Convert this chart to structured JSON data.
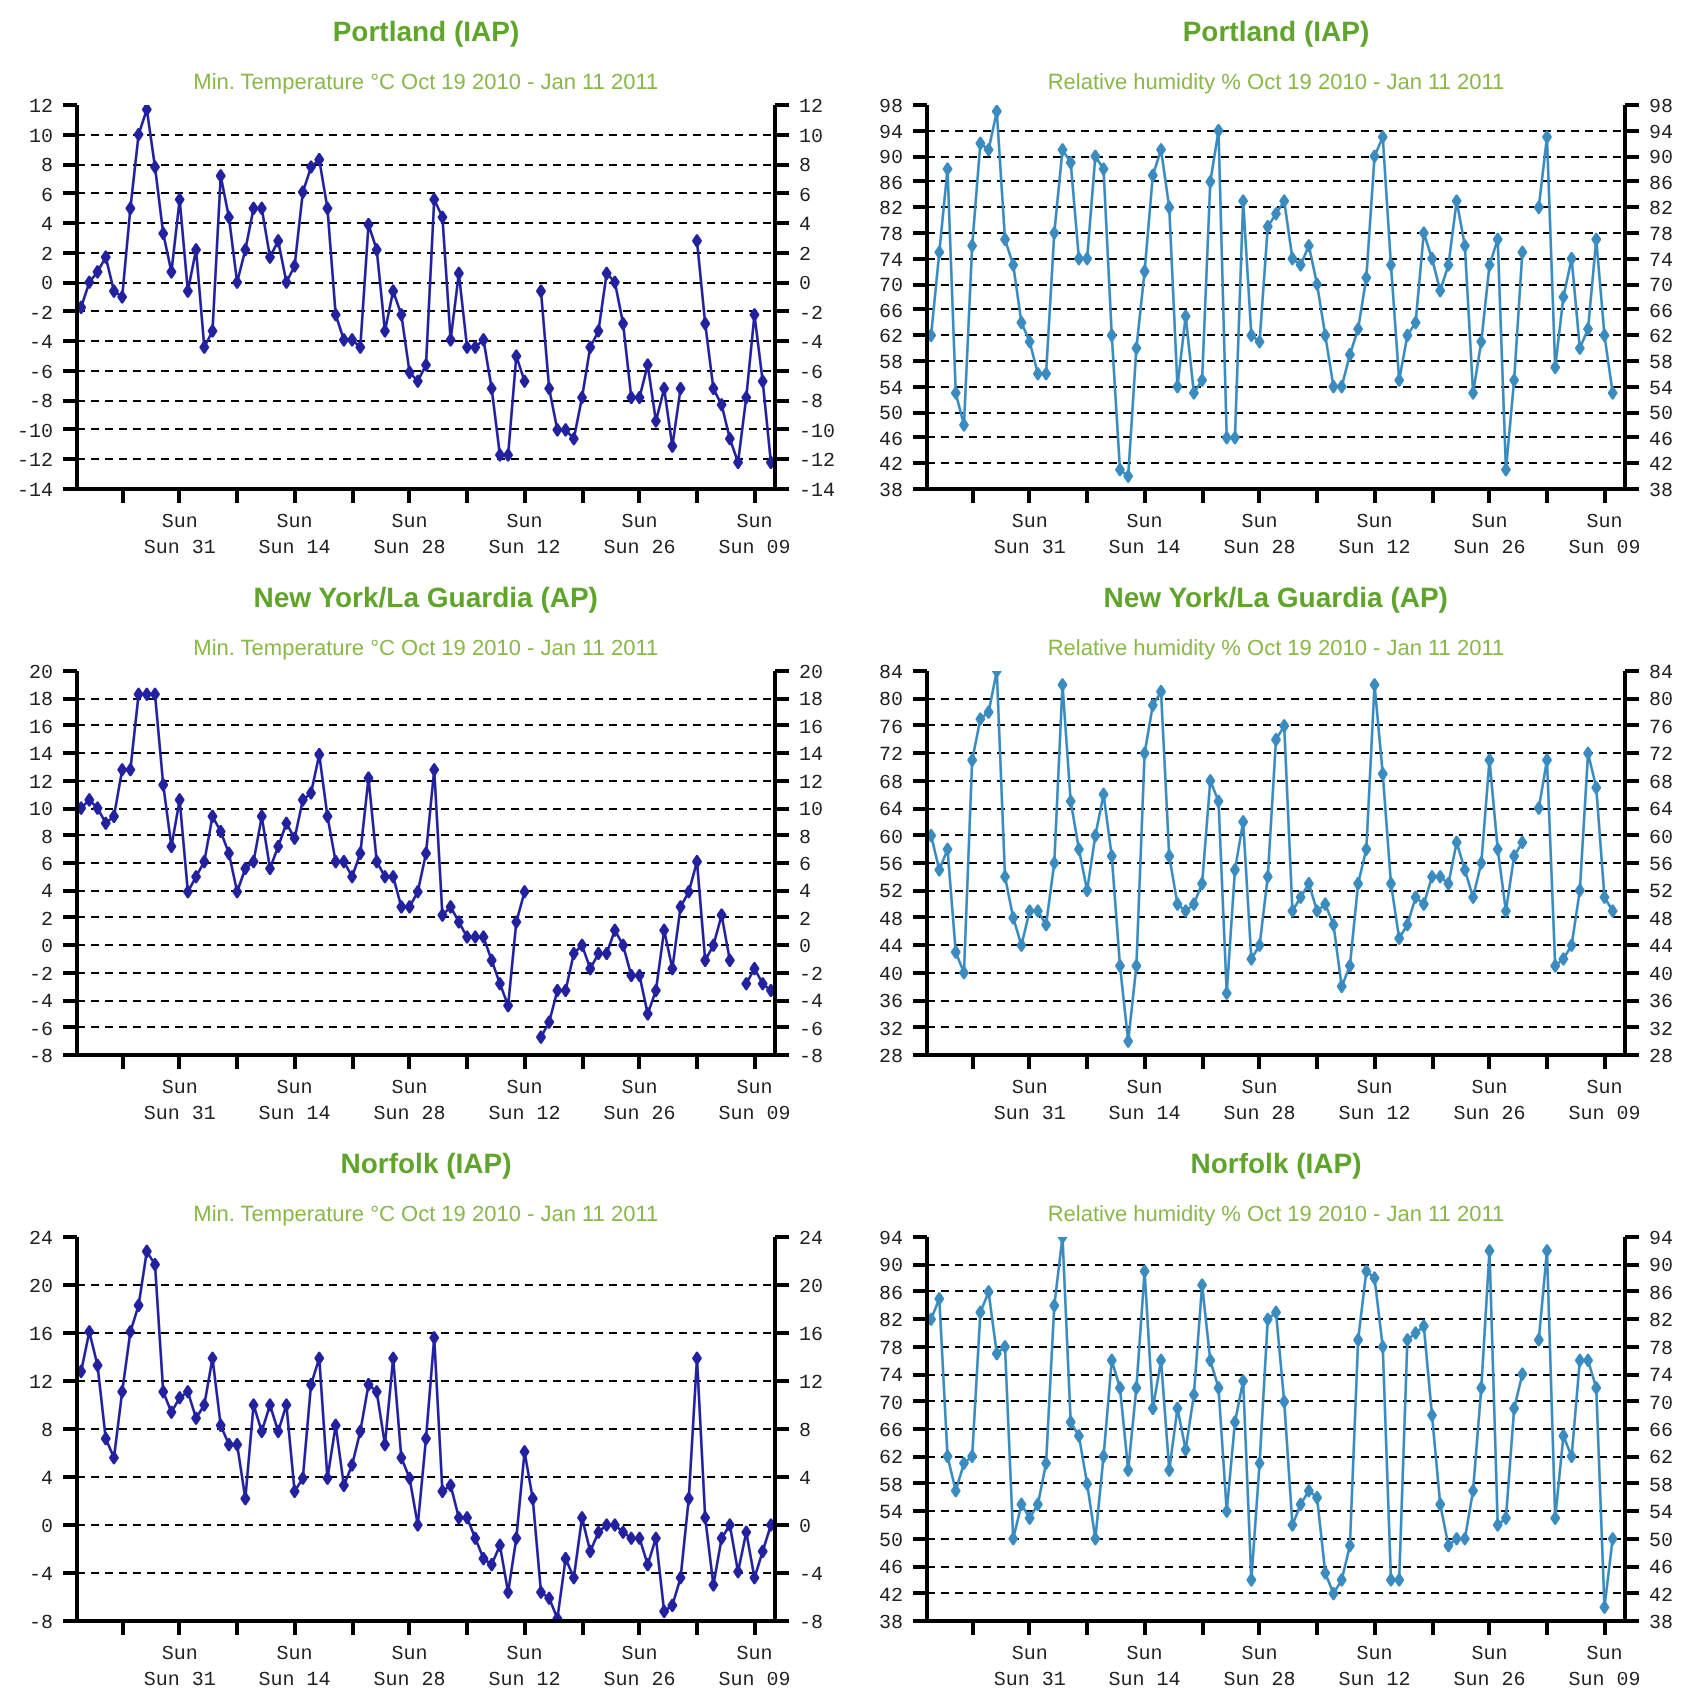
{
  "chart_data": [
    {
      "type": "line",
      "title": "Portland (IAP)",
      "subtitle": "Min. Temperature °C Oct 19 2010 - Jan 11 2011",
      "marker": "diamond",
      "line_style": "solid",
      "grid": "y",
      "x": [
        "2010-10-19",
        "2010-10-20",
        "2010-10-21",
        "2010-10-22",
        "2010-10-23",
        "2010-10-24",
        "2010-10-25",
        "2010-10-26",
        "2010-10-27",
        "2010-10-28",
        "2010-10-29",
        "2010-10-30",
        "2010-10-31",
        "2010-11-01",
        "2010-11-02",
        "2010-11-03",
        "2010-11-04",
        "2010-11-05",
        "2010-11-06",
        "2010-11-07",
        "2010-11-08",
        "2010-11-09",
        "2010-11-10",
        "2010-11-11",
        "2010-11-12",
        "2010-11-13",
        "2010-11-14",
        "2010-11-15",
        "2010-11-16",
        "2010-11-17",
        "2010-11-18",
        "2010-11-19",
        "2010-11-20",
        "2010-11-21",
        "2010-11-22",
        "2010-11-23",
        "2010-11-24",
        "2010-11-25",
        "2010-11-26",
        "2010-11-27",
        "2010-11-28",
        "2010-11-29",
        "2010-11-30",
        "2010-12-01",
        "2010-12-02",
        "2010-12-03",
        "2010-12-04",
        "2010-12-05",
        "2010-12-06",
        "2010-12-07",
        "2010-12-08",
        "2010-12-09",
        "2010-12-10",
        "2010-12-11",
        "2010-12-12",
        "2010-12-13",
        "2010-12-14",
        "2010-12-15",
        "2010-12-16",
        "2010-12-17",
        "2010-12-18",
        "2010-12-19",
        "2010-12-20",
        "2010-12-21",
        "2010-12-22",
        "2010-12-23",
        "2010-12-24",
        "2010-12-25",
        "2010-12-26",
        "2010-12-27",
        "2010-12-28",
        "2010-12-29",
        "2010-12-30",
        "2010-12-31",
        "2011-01-01",
        "2011-01-02",
        "2011-01-03",
        "2011-01-04",
        "2011-01-05",
        "2011-01-06",
        "2011-01-07",
        "2011-01-08",
        "2011-01-09",
        "2011-01-10",
        "2011-01-11"
      ],
      "series": [
        {
          "color": "#2222a0",
          "values": [
            -1.7,
            0,
            0.7,
            1.7,
            -0.6,
            -1.0,
            5.0,
            10.0,
            11.7,
            7.8,
            3.3,
            0.7,
            5.6,
            -0.6,
            2.2,
            -4.4,
            -3.3,
            7.2,
            4.4,
            0,
            2.2,
            5.0,
            5.0,
            1.7,
            2.8,
            0,
            1.1,
            6.1,
            7.8,
            8.3,
            5.0,
            -2.2,
            -3.9,
            -3.9,
            -4.4,
            3.9,
            2.2,
            -3.3,
            -0.6,
            -2.2,
            -6.1,
            -6.7,
            -5.6,
            5.6,
            4.4,
            -3.9,
            0.6,
            -4.4,
            -4.4,
            -3.9,
            -7.2,
            -11.7,
            -11.7,
            -5.0,
            -6.7,
            null,
            -0.6,
            -7.2,
            -10.0,
            -10.0,
            -10.6,
            -7.8,
            -4.4,
            -3.3,
            0.6,
            0,
            -2.8,
            -7.8,
            -7.8,
            -5.6,
            -9.4,
            -7.2,
            -11.1,
            -7.2,
            null,
            2.8,
            -2.8,
            -7.2,
            -8.3,
            -10.6,
            -12.2,
            -7.8,
            -2.2,
            -6.7,
            -12.2
          ]
        }
      ],
      "xlim": [
        "2010-10-18T12:00",
        "2011-01-11T12:00"
      ],
      "xticks": [
        {
          "value": "2010-10-24",
          "label": null
        },
        {
          "value": "2010-10-31",
          "label": "Sun\nSun 31"
        },
        {
          "value": "2010-11-07",
          "label": null
        },
        {
          "value": "2010-11-14",
          "label": "Sun\nSun 14"
        },
        {
          "value": "2010-11-21",
          "label": null
        },
        {
          "value": "2010-11-28",
          "label": "Sun\nSun 28"
        },
        {
          "value": "2010-12-05",
          "label": null
        },
        {
          "value": "2010-12-12",
          "label": "Sun\nSun 12"
        },
        {
          "value": "2010-12-19",
          "label": null
        },
        {
          "value": "2010-12-26",
          "label": "Sun\nSun 26"
        },
        {
          "value": "2011-01-02",
          "label": null
        },
        {
          "value": "2011-01-09",
          "label": "Sun\nSun 09"
        }
      ],
      "ylim": [
        -14,
        12
      ],
      "yticks": [
        -14,
        -12,
        -10,
        -8,
        -6,
        -4,
        -2,
        0,
        2,
        4,
        6,
        8,
        10,
        12
      ],
      "y2lim": [
        -14,
        12
      ],
      "y2ticks": [
        -14,
        -12,
        -10,
        -8,
        -6,
        -4,
        -2,
        0,
        2,
        4,
        6,
        8,
        10,
        12
      ]
    },
    {
      "type": "line",
      "title": "Portland (IAP)",
      "subtitle": "Relative humidity % Oct 19 2010 - Jan 11 2011",
      "marker": "diamond",
      "line_style": "solid",
      "grid": "y",
      "x": [
        "2010-10-19",
        "2010-10-20",
        "2010-10-21",
        "2010-10-22",
        "2010-10-23",
        "2010-10-24",
        "2010-10-25",
        "2010-10-26",
        "2010-10-27",
        "2010-10-28",
        "2010-10-29",
        "2010-10-30",
        "2010-10-31",
        "2010-11-01",
        "2010-11-02",
        "2010-11-03",
        "2010-11-04",
        "2010-11-05",
        "2010-11-06",
        "2010-11-07",
        "2010-11-08",
        "2010-11-09",
        "2010-11-10",
        "2010-11-11",
        "2010-11-12",
        "2010-11-13",
        "2010-11-14",
        "2010-11-15",
        "2010-11-16",
        "2010-11-17",
        "2010-11-18",
        "2010-11-19",
        "2010-11-20",
        "2010-11-21",
        "2010-11-22",
        "2010-11-23",
        "2010-11-24",
        "2010-11-25",
        "2010-11-26",
        "2010-11-27",
        "2010-11-28",
        "2010-11-29",
        "2010-11-30",
        "2010-12-01",
        "2010-12-02",
        "2010-12-03",
        "2010-12-04",
        "2010-12-05",
        "2010-12-06",
        "2010-12-07",
        "2010-12-08",
        "2010-12-09",
        "2010-12-10",
        "2010-12-11",
        "2010-12-12",
        "2010-12-13",
        "2010-12-14",
        "2010-12-15",
        "2010-12-16",
        "2010-12-17",
        "2010-12-18",
        "2010-12-19",
        "2010-12-20",
        "2010-12-21",
        "2010-12-22",
        "2010-12-23",
        "2010-12-24",
        "2010-12-25",
        "2010-12-26",
        "2010-12-27",
        "2010-12-28",
        "2010-12-29",
        "2010-12-30",
        "2010-12-31",
        "2011-01-01",
        "2011-01-02",
        "2011-01-03",
        "2011-01-04",
        "2011-01-05",
        "2011-01-06",
        "2011-01-07",
        "2011-01-08",
        "2011-01-09",
        "2011-01-10"
      ],
      "series": [
        {
          "color": "#3a8cc0",
          "values": [
            62,
            75,
            88,
            53,
            48,
            76,
            92,
            91,
            97,
            77,
            73,
            64,
            61,
            56,
            56,
            78,
            91,
            89,
            74,
            74,
            90,
            88,
            62,
            41,
            40,
            60,
            72,
            87,
            91,
            82,
            54,
            65,
            53,
            55,
            86,
            94,
            46,
            46,
            83,
            62,
            61,
            79,
            81,
            83,
            74,
            73,
            76,
            70,
            62,
            54,
            54,
            59,
            63,
            71,
            90,
            93,
            73,
            55,
            62,
            64,
            78,
            74,
            69,
            73,
            83,
            76,
            53,
            61,
            73,
            77,
            41,
            55,
            75,
            null,
            82,
            93,
            57,
            68,
            74,
            60,
            63,
            77,
            62,
            53
          ]
        }
      ],
      "xlim": [
        "2010-10-18T12:00",
        "2011-01-11T12:00"
      ],
      "xticks": [
        {
          "value": "2010-10-24",
          "label": null
        },
        {
          "value": "2010-10-31",
          "label": "Sun\nSun 31"
        },
        {
          "value": "2010-11-07",
          "label": null
        },
        {
          "value": "2010-11-14",
          "label": "Sun\nSun 14"
        },
        {
          "value": "2010-11-21",
          "label": null
        },
        {
          "value": "2010-11-28",
          "label": "Sun\nSun 28"
        },
        {
          "value": "2010-12-05",
          "label": null
        },
        {
          "value": "2010-12-12",
          "label": "Sun\nSun 12"
        },
        {
          "value": "2010-12-19",
          "label": null
        },
        {
          "value": "2010-12-26",
          "label": "Sun\nSun 26"
        },
        {
          "value": "2011-01-02",
          "label": null
        },
        {
          "value": "2011-01-09",
          "label": "Sun\nSun 09"
        }
      ],
      "ylim": [
        38,
        98
      ],
      "yticks": [
        38,
        42,
        46,
        50,
        54,
        58,
        62,
        66,
        70,
        74,
        78,
        82,
        86,
        90,
        94,
        98
      ],
      "y2lim": [
        38,
        98
      ],
      "y2ticks": [
        38,
        42,
        46,
        50,
        54,
        58,
        62,
        66,
        70,
        74,
        78,
        82,
        86,
        90,
        94,
        98
      ]
    },
    {
      "type": "line",
      "title": "New York/La Guardia (AP)",
      "subtitle": "Min. Temperature °C Oct 19 2010 - Jan 11 2011",
      "marker": "diamond",
      "line_style": "solid",
      "grid": "y",
      "x": [
        "2010-10-19",
        "2010-10-20",
        "2010-10-21",
        "2010-10-22",
        "2010-10-23",
        "2010-10-24",
        "2010-10-25",
        "2010-10-26",
        "2010-10-27",
        "2010-10-28",
        "2010-10-29",
        "2010-10-30",
        "2010-10-31",
        "2010-11-01",
        "2010-11-02",
        "2010-11-03",
        "2010-11-04",
        "2010-11-05",
        "2010-11-06",
        "2010-11-07",
        "2010-11-08",
        "2010-11-09",
        "2010-11-10",
        "2010-11-11",
        "2010-11-12",
        "2010-11-13",
        "2010-11-14",
        "2010-11-15",
        "2010-11-16",
        "2010-11-17",
        "2010-11-18",
        "2010-11-19",
        "2010-11-20",
        "2010-11-21",
        "2010-11-22",
        "2010-11-23",
        "2010-11-24",
        "2010-11-25",
        "2010-11-26",
        "2010-11-27",
        "2010-11-28",
        "2010-11-29",
        "2010-11-30",
        "2010-12-01",
        "2010-12-02",
        "2010-12-03",
        "2010-12-04",
        "2010-12-05",
        "2010-12-06",
        "2010-12-07",
        "2010-12-08",
        "2010-12-09",
        "2010-12-10",
        "2010-12-11",
        "2010-12-12",
        "2010-12-13",
        "2010-12-14",
        "2010-12-15",
        "2010-12-16",
        "2010-12-17",
        "2010-12-18",
        "2010-12-19",
        "2010-12-20",
        "2010-12-21",
        "2010-12-22",
        "2010-12-23",
        "2010-12-24",
        "2010-12-25",
        "2010-12-26",
        "2010-12-27",
        "2010-12-28",
        "2010-12-29",
        "2010-12-30",
        "2010-12-31",
        "2011-01-01",
        "2011-01-02",
        "2011-01-03",
        "2011-01-04",
        "2011-01-05",
        "2011-01-06",
        "2011-01-07",
        "2011-01-08",
        "2011-01-09",
        "2011-01-10",
        "2011-01-11"
      ],
      "series": [
        {
          "color": "#2222a0",
          "values": [
            10.0,
            10.6,
            10.0,
            8.9,
            9.4,
            12.8,
            12.8,
            18.3,
            18.3,
            18.3,
            11.7,
            7.2,
            10.6,
            3.9,
            5.0,
            6.1,
            9.4,
            8.3,
            6.7,
            3.9,
            5.6,
            6.1,
            9.4,
            5.6,
            7.2,
            8.9,
            7.8,
            10.6,
            11.1,
            13.9,
            9.4,
            6.1,
            6.1,
            5.0,
            6.7,
            12.2,
            6.1,
            5.0,
            5.0,
            2.8,
            2.8,
            3.9,
            6.7,
            12.8,
            2.2,
            2.8,
            1.7,
            0.6,
            0.6,
            0.6,
            -1.1,
            -2.8,
            -4.4,
            1.7,
            3.9,
            null,
            -6.7,
            -5.6,
            -3.3,
            -3.3,
            -0.6,
            0,
            -1.7,
            -0.6,
            -0.6,
            1.1,
            0,
            -2.2,
            -2.2,
            -5.0,
            -3.3,
            1.1,
            -1.7,
            2.8,
            3.9,
            6.1,
            -1.1,
            0,
            2.2,
            -1.1,
            null,
            -2.8,
            -1.7,
            -2.8,
            -3.3
          ]
        }
      ],
      "xlim": [
        "2010-10-18T12:00",
        "2011-01-11T12:00"
      ],
      "xticks": [
        {
          "value": "2010-10-24",
          "label": null
        },
        {
          "value": "2010-10-31",
          "label": "Sun\nSun 31"
        },
        {
          "value": "2010-11-07",
          "label": null
        },
        {
          "value": "2010-11-14",
          "label": "Sun\nSun 14"
        },
        {
          "value": "2010-11-21",
          "label": null
        },
        {
          "value": "2010-11-28",
          "label": "Sun\nSun 28"
        },
        {
          "value": "2010-12-05",
          "label": null
        },
        {
          "value": "2010-12-12",
          "label": "Sun\nSun 12"
        },
        {
          "value": "2010-12-19",
          "label": null
        },
        {
          "value": "2010-12-26",
          "label": "Sun\nSun 26"
        },
        {
          "value": "2011-01-02",
          "label": null
        },
        {
          "value": "2011-01-09",
          "label": "Sun\nSun 09"
        }
      ],
      "ylim": [
        -8,
        20
      ],
      "yticks": [
        -8,
        -6,
        -4,
        -2,
        0,
        2,
        4,
        6,
        8,
        10,
        12,
        14,
        16,
        18,
        20
      ],
      "y2lim": [
        -8,
        20
      ],
      "y2ticks": [
        -8,
        -6,
        -4,
        -2,
        0,
        2,
        4,
        6,
        8,
        10,
        12,
        14,
        16,
        18,
        20
      ]
    },
    {
      "type": "line",
      "title": "New York/La Guardia (AP)",
      "subtitle": "Relative humidity % Oct 19 2010 - Jan 11 2011",
      "marker": "diamond",
      "line_style": "solid",
      "grid": "y",
      "x": [
        "2010-10-19",
        "2010-10-20",
        "2010-10-21",
        "2010-10-22",
        "2010-10-23",
        "2010-10-24",
        "2010-10-25",
        "2010-10-26",
        "2010-10-27",
        "2010-10-28",
        "2010-10-29",
        "2010-10-30",
        "2010-10-31",
        "2010-11-01",
        "2010-11-02",
        "2010-11-03",
        "2010-11-04",
        "2010-11-05",
        "2010-11-06",
        "2010-11-07",
        "2010-11-08",
        "2010-11-09",
        "2010-11-10",
        "2010-11-11",
        "2010-11-12",
        "2010-11-13",
        "2010-11-14",
        "2010-11-15",
        "2010-11-16",
        "2010-11-17",
        "2010-11-18",
        "2010-11-19",
        "2010-11-20",
        "2010-11-21",
        "2010-11-22",
        "2010-11-23",
        "2010-11-24",
        "2010-11-25",
        "2010-11-26",
        "2010-11-27",
        "2010-11-28",
        "2010-11-29",
        "2010-11-30",
        "2010-12-01",
        "2010-12-02",
        "2010-12-03",
        "2010-12-04",
        "2010-12-05",
        "2010-12-06",
        "2010-12-07",
        "2010-12-08",
        "2010-12-09",
        "2010-12-10",
        "2010-12-11",
        "2010-12-12",
        "2010-12-13",
        "2010-12-14",
        "2010-12-15",
        "2010-12-16",
        "2010-12-17",
        "2010-12-18",
        "2010-12-19",
        "2010-12-20",
        "2010-12-21",
        "2010-12-22",
        "2010-12-23",
        "2010-12-24",
        "2010-12-25",
        "2010-12-26",
        "2010-12-27",
        "2010-12-28",
        "2010-12-29",
        "2010-12-30",
        "2010-12-31",
        "2011-01-01",
        "2011-01-02",
        "2011-01-03",
        "2011-01-04",
        "2011-01-05",
        "2011-01-06",
        "2011-01-07",
        "2011-01-08",
        "2011-01-09",
        "2011-01-10"
      ],
      "series": [
        {
          "color": "#3a8cc0",
          "values": [
            60,
            55,
            58,
            43,
            40,
            71,
            77,
            78,
            84,
            54,
            48,
            44,
            49,
            49,
            47,
            56,
            82,
            65,
            58,
            52,
            60,
            66,
            57,
            41,
            30,
            41,
            72,
            79,
            81,
            57,
            50,
            49,
            50,
            53,
            68,
            65,
            37,
            55,
            62,
            42,
            44,
            54,
            74,
            76,
            49,
            51,
            53,
            49,
            50,
            47,
            38,
            41,
            53,
            58,
            82,
            69,
            53,
            45,
            47,
            51,
            50,
            54,
            54,
            53,
            59,
            55,
            51,
            56,
            71,
            58,
            49,
            57,
            59,
            null,
            64,
            71,
            41,
            42,
            44,
            52,
            72,
            67,
            51,
            49
          ]
        }
      ],
      "xlim": [
        "2010-10-18T12:00",
        "2011-01-11T12:00"
      ],
      "xticks": [
        {
          "value": "2010-10-24",
          "label": null
        },
        {
          "value": "2010-10-31",
          "label": "Sun\nSun 31"
        },
        {
          "value": "2010-11-07",
          "label": null
        },
        {
          "value": "2010-11-14",
          "label": "Sun\nSun 14"
        },
        {
          "value": "2010-11-21",
          "label": null
        },
        {
          "value": "2010-11-28",
          "label": "Sun\nSun 28"
        },
        {
          "value": "2010-12-05",
          "label": null
        },
        {
          "value": "2010-12-12",
          "label": "Sun\nSun 12"
        },
        {
          "value": "2010-12-19",
          "label": null
        },
        {
          "value": "2010-12-26",
          "label": "Sun\nSun 26"
        },
        {
          "value": "2011-01-02",
          "label": null
        },
        {
          "value": "2011-01-09",
          "label": "Sun\nSun 09"
        }
      ],
      "ylim": [
        28,
        84
      ],
      "yticks": [
        28,
        32,
        36,
        40,
        44,
        48,
        52,
        56,
        60,
        64,
        68,
        72,
        76,
        80,
        84
      ],
      "y2lim": [
        28,
        84
      ],
      "y2ticks": [
        28,
        32,
        36,
        40,
        44,
        48,
        52,
        56,
        60,
        64,
        68,
        72,
        76,
        80,
        84
      ]
    },
    {
      "type": "line",
      "title": "Norfolk (IAP)",
      "subtitle": "Min. Temperature °C Oct 19 2010 - Jan 11 2011",
      "marker": "diamond",
      "line_style": "solid",
      "grid": "y",
      "x": [
        "2010-10-19",
        "2010-10-20",
        "2010-10-21",
        "2010-10-22",
        "2010-10-23",
        "2010-10-24",
        "2010-10-25",
        "2010-10-26",
        "2010-10-27",
        "2010-10-28",
        "2010-10-29",
        "2010-10-30",
        "2010-10-31",
        "2010-11-01",
        "2010-11-02",
        "2010-11-03",
        "2010-11-04",
        "2010-11-05",
        "2010-11-06",
        "2010-11-07",
        "2010-11-08",
        "2010-11-09",
        "2010-11-10",
        "2010-11-11",
        "2010-11-12",
        "2010-11-13",
        "2010-11-14",
        "2010-11-15",
        "2010-11-16",
        "2010-11-17",
        "2010-11-18",
        "2010-11-19",
        "2010-11-20",
        "2010-11-21",
        "2010-11-22",
        "2010-11-23",
        "2010-11-24",
        "2010-11-25",
        "2010-11-26",
        "2010-11-27",
        "2010-11-28",
        "2010-11-29",
        "2010-11-30",
        "2010-12-01",
        "2010-12-02",
        "2010-12-03",
        "2010-12-04",
        "2010-12-05",
        "2010-12-06",
        "2010-12-07",
        "2010-12-08",
        "2010-12-09",
        "2010-12-10",
        "2010-12-11",
        "2010-12-12",
        "2010-12-13",
        "2010-12-14",
        "2010-12-15",
        "2010-12-16",
        "2010-12-17",
        "2010-12-18",
        "2010-12-19",
        "2010-12-20",
        "2010-12-21",
        "2010-12-22",
        "2010-12-23",
        "2010-12-24",
        "2010-12-25",
        "2010-12-26",
        "2010-12-27",
        "2010-12-28",
        "2010-12-29",
        "2010-12-30",
        "2010-12-31",
        "2011-01-01",
        "2011-01-02",
        "2011-01-03",
        "2011-01-04",
        "2011-01-05",
        "2011-01-06",
        "2011-01-07",
        "2011-01-08",
        "2011-01-09",
        "2011-01-10",
        "2011-01-11"
      ],
      "series": [
        {
          "color": "#2222a0",
          "values": [
            12.8,
            16.1,
            13.3,
            7.2,
            5.6,
            11.1,
            16.1,
            18.3,
            22.8,
            21.7,
            11.1,
            9.4,
            10.6,
            11.1,
            8.9,
            10.0,
            13.9,
            8.3,
            6.7,
            6.7,
            2.2,
            10.0,
            7.8,
            10.0,
            7.8,
            10.0,
            2.8,
            3.9,
            11.7,
            13.9,
            3.9,
            8.3,
            3.3,
            5.0,
            7.8,
            11.7,
            11.1,
            6.7,
            13.9,
            5.6,
            3.9,
            0,
            7.2,
            15.6,
            2.8,
            3.3,
            0.6,
            0.6,
            -1.1,
            -2.8,
            -3.3,
            -1.7,
            -5.6,
            -1.1,
            6.1,
            2.2,
            -5.6,
            -6.1,
            -7.8,
            -2.8,
            -4.4,
            0.6,
            -2.2,
            -0.6,
            0,
            0,
            -0.6,
            -1.1,
            -1.1,
            -3.3,
            -1.1,
            -7.2,
            -6.7,
            -4.4,
            2.2,
            13.9,
            0.6,
            -5.0,
            -1.1,
            0,
            -3.9,
            -0.6,
            -4.4,
            -2.2,
            0
          ]
        }
      ],
      "xlim": [
        "2010-10-18T12:00",
        "2011-01-11T12:00"
      ],
      "xticks": [
        {
          "value": "2010-10-24",
          "label": null
        },
        {
          "value": "2010-10-31",
          "label": "Sun\nSun 31"
        },
        {
          "value": "2010-11-07",
          "label": null
        },
        {
          "value": "2010-11-14",
          "label": "Sun\nSun 14"
        },
        {
          "value": "2010-11-21",
          "label": null
        },
        {
          "value": "2010-11-28",
          "label": "Sun\nSun 28"
        },
        {
          "value": "2010-12-05",
          "label": null
        },
        {
          "value": "2010-12-12",
          "label": "Sun\nSun 12"
        },
        {
          "value": "2010-12-19",
          "label": null
        },
        {
          "value": "2010-12-26",
          "label": "Sun\nSun 26"
        },
        {
          "value": "2011-01-02",
          "label": null
        },
        {
          "value": "2011-01-09",
          "label": "Sun\nSun 09"
        }
      ],
      "ylim": [
        -8,
        24
      ],
      "yticks": [
        -8,
        -4,
        0,
        4,
        8,
        12,
        16,
        20,
        24
      ],
      "y2lim": [
        -8,
        24
      ],
      "y2ticks": [
        -8,
        -4,
        0,
        4,
        8,
        12,
        16,
        20,
        24
      ]
    },
    {
      "type": "line",
      "title": "Norfolk (IAP)",
      "subtitle": "Relative humidity % Oct 19 2010 - Jan 11 2011",
      "marker": "diamond",
      "line_style": "solid",
      "grid": "y",
      "x": [
        "2010-10-19",
        "2010-10-20",
        "2010-10-21",
        "2010-10-22",
        "2010-10-23",
        "2010-10-24",
        "2010-10-25",
        "2010-10-26",
        "2010-10-27",
        "2010-10-28",
        "2010-10-29",
        "2010-10-30",
        "2010-10-31",
        "2010-11-01",
        "2010-11-02",
        "2010-11-03",
        "2010-11-04",
        "2010-11-05",
        "2010-11-06",
        "2010-11-07",
        "2010-11-08",
        "2010-11-09",
        "2010-11-10",
        "2010-11-11",
        "2010-11-12",
        "2010-11-13",
        "2010-11-14",
        "2010-11-15",
        "2010-11-16",
        "2010-11-17",
        "2010-11-18",
        "2010-11-19",
        "2010-11-20",
        "2010-11-21",
        "2010-11-22",
        "2010-11-23",
        "2010-11-24",
        "2010-11-25",
        "2010-11-26",
        "2010-11-27",
        "2010-11-28",
        "2010-11-29",
        "2010-11-30",
        "2010-12-01",
        "2010-12-02",
        "2010-12-03",
        "2010-12-04",
        "2010-12-05",
        "2010-12-06",
        "2010-12-07",
        "2010-12-08",
        "2010-12-09",
        "2010-12-10",
        "2010-12-11",
        "2010-12-12",
        "2010-12-13",
        "2010-12-14",
        "2010-12-15",
        "2010-12-16",
        "2010-12-17",
        "2010-12-18",
        "2010-12-19",
        "2010-12-20",
        "2010-12-21",
        "2010-12-22",
        "2010-12-23",
        "2010-12-24",
        "2010-12-25",
        "2010-12-26",
        "2010-12-27",
        "2010-12-28",
        "2010-12-29",
        "2010-12-30",
        "2010-12-31",
        "2011-01-01",
        "2011-01-02",
        "2011-01-03",
        "2011-01-04",
        "2011-01-05",
        "2011-01-06",
        "2011-01-07",
        "2011-01-08",
        "2011-01-09",
        "2011-01-10"
      ],
      "series": [
        {
          "color": "#3a8cc0",
          "values": [
            82,
            85,
            62,
            57,
            61,
            62,
            83,
            86,
            77,
            78,
            50,
            55,
            53,
            55,
            61,
            84,
            94,
            67,
            65,
            58,
            50,
            62,
            76,
            72,
            60,
            72,
            89,
            69,
            76,
            60,
            69,
            63,
            71,
            87,
            76,
            72,
            54,
            67,
            73,
            44,
            61,
            82,
            83,
            70,
            52,
            55,
            57,
            56,
            45,
            42,
            44,
            49,
            79,
            89,
            88,
            78,
            44,
            44,
            79,
            80,
            81,
            68,
            55,
            49,
            50,
            50,
            57,
            72,
            92,
            52,
            53,
            69,
            74,
            null,
            79,
            92,
            53,
            65,
            62,
            76,
            76,
            72,
            40,
            50
          ]
        }
      ],
      "xlim": [
        "2010-10-18T12:00",
        "2011-01-11T12:00"
      ],
      "xticks": [
        {
          "value": "2010-10-24",
          "label": null
        },
        {
          "value": "2010-10-31",
          "label": "Sun\nSun 31"
        },
        {
          "value": "2010-11-07",
          "label": null
        },
        {
          "value": "2010-11-14",
          "label": "Sun\nSun 14"
        },
        {
          "value": "2010-11-21",
          "label": null
        },
        {
          "value": "2010-11-28",
          "label": "Sun\nSun 28"
        },
        {
          "value": "2010-12-05",
          "label": null
        },
        {
          "value": "2010-12-12",
          "label": "Sun\nSun 12"
        },
        {
          "value": "2010-12-19",
          "label": null
        },
        {
          "value": "2010-12-26",
          "label": "Sun\nSun 26"
        },
        {
          "value": "2011-01-02",
          "label": null
        },
        {
          "value": "2011-01-09",
          "label": "Sun\nSun 09"
        }
      ],
      "ylim": [
        38,
        94
      ],
      "yticks": [
        38,
        42,
        46,
        50,
        54,
        58,
        62,
        66,
        70,
        74,
        78,
        82,
        86,
        90,
        94
      ],
      "y2lim": [
        38,
        94
      ],
      "y2ticks": [
        38,
        42,
        46,
        50,
        54,
        58,
        62,
        66,
        70,
        74,
        78,
        82,
        86,
        90,
        94
      ]
    }
  ]
}
